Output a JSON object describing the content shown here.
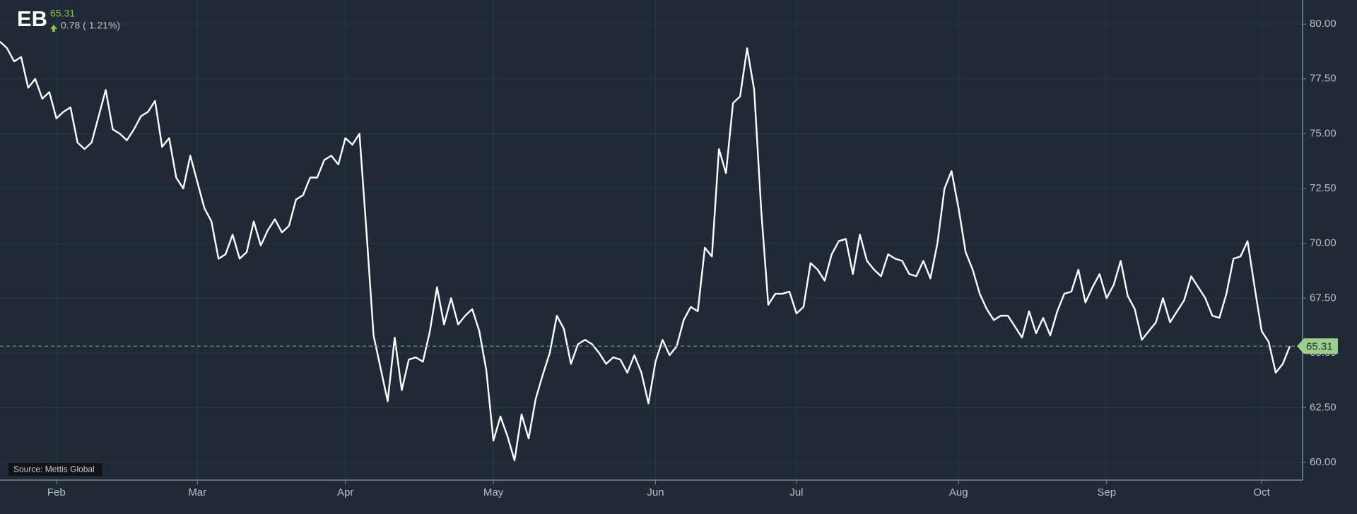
{
  "chart_data": {
    "type": "line",
    "title": "EB",
    "price": 65.31,
    "change": "0.78 ( 1.21%)",
    "source": "Source: Mettis Global",
    "color": "#ffffff",
    "grid": true,
    "categories": [
      null,
      null,
      null,
      null,
      null,
      null,
      null,
      null,
      "Feb",
      null,
      null,
      null,
      null,
      null,
      null,
      null,
      null,
      null,
      null,
      null,
      null,
      null,
      null,
      null,
      null,
      null,
      null,
      null,
      "Mar",
      null,
      null,
      null,
      null,
      null,
      null,
      null,
      null,
      null,
      null,
      null,
      null,
      null,
      null,
      null,
      null,
      null,
      null,
      null,
      null,
      "Apr",
      null,
      null,
      null,
      null,
      null,
      null,
      null,
      null,
      null,
      null,
      null,
      null,
      null,
      null,
      null,
      null,
      null,
      null,
      null,
      null,
      "May",
      null,
      null,
      null,
      null,
      null,
      null,
      null,
      null,
      null,
      null,
      null,
      null,
      null,
      null,
      null,
      null,
      null,
      null,
      null,
      null,
      null,
      null,
      "Jun",
      null,
      null,
      null,
      null,
      null,
      null,
      null,
      null,
      null,
      null,
      null,
      null,
      null,
      null,
      null,
      null,
      null,
      null,
      null,
      "Jul",
      null,
      null,
      null,
      null,
      null,
      null,
      null,
      null,
      null,
      null,
      null,
      null,
      null,
      null,
      null,
      null,
      null,
      null,
      null,
      null,
      null,
      null,
      "Aug",
      null,
      null,
      null,
      null,
      null,
      null,
      null,
      null,
      null,
      null,
      null,
      null,
      null,
      null,
      null,
      null,
      null,
      null,
      null,
      null,
      "Sep",
      null,
      null,
      null,
      null,
      null,
      null,
      null,
      null,
      null,
      null,
      null,
      null,
      null,
      null,
      null,
      null,
      null,
      null,
      null,
      null,
      null,
      "Oct",
      null,
      null,
      null,
      null
    ],
    "values": [
      79.2,
      78.9,
      78.3,
      78.5,
      77.1,
      77.5,
      76.6,
      76.9,
      75.7,
      76.0,
      76.2,
      74.6,
      74.3,
      74.6,
      75.8,
      77.0,
      75.2,
      75.0,
      74.7,
      75.2,
      75.8,
      76.0,
      76.5,
      74.4,
      74.8,
      73.0,
      72.5,
      74.0,
      72.8,
      71.6,
      71.0,
      69.3,
      69.5,
      70.4,
      69.3,
      69.6,
      71.0,
      69.9,
      70.6,
      71.1,
      70.5,
      70.8,
      72.0,
      72.2,
      73.0,
      73.0,
      73.8,
      74.0,
      73.6,
      74.8,
      74.5,
      75.0,
      70.5,
      65.8,
      64.3,
      62.8,
      65.7,
      63.3,
      64.7,
      64.8,
      64.6,
      66.0,
      68.0,
      66.3,
      67.5,
      66.3,
      66.7,
      67.0,
      66.0,
      64.2,
      61.0,
      62.1,
      61.2,
      60.1,
      62.2,
      61.1,
      62.9,
      64.0,
      65.0,
      66.7,
      66.1,
      64.5,
      65.4,
      65.6,
      65.4,
      65.0,
      64.5,
      64.8,
      64.7,
      64.1,
      64.9,
      64.1,
      62.7,
      64.6,
      65.6,
      64.9,
      65.3,
      66.5,
      67.1,
      66.9,
      69.8,
      69.4,
      74.3,
      73.2,
      76.4,
      76.7,
      78.9,
      77.0,
      71.5,
      67.2,
      67.7,
      67.7,
      67.8,
      66.8,
      67.1,
      69.1,
      68.8,
      68.3,
      69.5,
      70.1,
      70.2,
      68.6,
      70.4,
      69.2,
      68.8,
      68.5,
      69.5,
      69.3,
      69.2,
      68.6,
      68.5,
      69.2,
      68.4,
      70.0,
      72.5,
      73.3,
      71.6,
      69.6,
      68.8,
      67.7,
      67.0,
      66.5,
      66.7,
      66.7,
      66.2,
      65.7,
      66.9,
      65.9,
      66.6,
      65.8,
      66.9,
      67.7,
      67.8,
      68.8,
      67.3,
      68.0,
      68.6,
      67.5,
      68.1,
      69.2,
      67.6,
      67.0,
      65.6,
      66.0,
      66.4,
      67.5,
      66.4,
      66.9,
      67.4,
      68.5,
      68.0,
      67.5,
      66.7,
      66.6,
      67.7,
      69.3,
      69.4,
      70.1,
      68.0,
      66.0,
      65.5,
      64.1,
      64.5,
      65.31
    ],
    "ylim": [
      59.2,
      81.1
    ],
    "yticks": [
      {
        "value": 60,
        "label": "60.00"
      },
      {
        "value": 62.5,
        "label": "62.50"
      },
      {
        "value": 65,
        "label": "65.00"
      },
      {
        "value": 67.5,
        "label": "67.50"
      },
      {
        "value": 70,
        "label": "70.00"
      },
      {
        "value": 72.5,
        "label": "72.50"
      },
      {
        "value": 75,
        "label": "75.00"
      },
      {
        "value": 77.5,
        "label": "77.50"
      },
      {
        "value": 80,
        "label": "80.00"
      }
    ]
  }
}
